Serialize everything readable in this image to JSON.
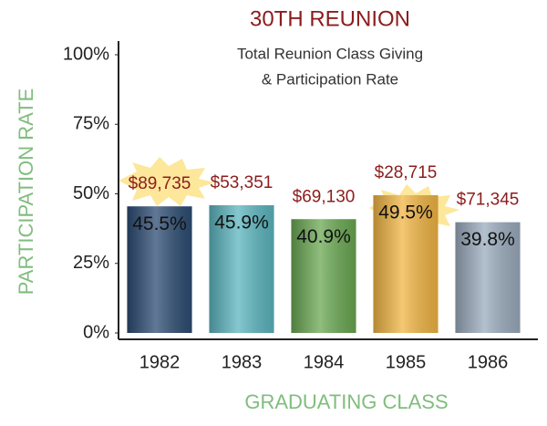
{
  "chart_data": {
    "type": "bar",
    "title": "30TH REUNION",
    "subtitle": [
      "Total Reunion Class Giving",
      "& Participation Rate"
    ],
    "x_label": "GRADUATING CLASS",
    "y_label": "PARTICIPATION RATE",
    "categories": [
      "1982",
      "1983",
      "1984",
      "1985",
      "1986"
    ],
    "values": [
      45.5,
      45.9,
      40.9,
      49.5,
      39.8
    ],
    "value_labels": [
      "45.5%",
      "45.9%",
      "40.9%",
      "49.5%",
      "39.8%"
    ],
    "colors": [
      "#2c4c72",
      "#5cb6bf",
      "#6aa852",
      "#f1b544",
      "#9aabbd"
    ],
    "giving": {
      "values": [
        89735,
        53351,
        69130,
        28715,
        71345
      ],
      "value_labels": [
        "$89,735",
        "$53,351",
        "$69,130",
        "$28,715",
        "$71,345"
      ]
    },
    "ylim": [
      0,
      100
    ],
    "yticks": [
      {
        "value": 0,
        "label": "0%"
      },
      {
        "value": 25,
        "label": "25%"
      },
      {
        "value": 50,
        "label": "50%"
      },
      {
        "value": 75,
        "label": "75%"
      },
      {
        "value": 100,
        "label": "100%"
      }
    ],
    "grid": false
  }
}
